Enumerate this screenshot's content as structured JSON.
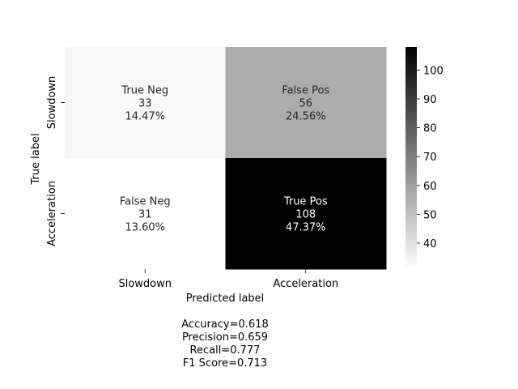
{
  "chart_data": {
    "type": "heatmap",
    "title": "",
    "xlabel": "Predicted label",
    "ylabel": "True label",
    "x_categories": [
      "Slowdown",
      "Acceleration"
    ],
    "y_categories": [
      "Slowdown",
      "Acceleration"
    ],
    "cells": [
      [
        {
          "name": "True Neg",
          "count": "33",
          "percent": "14.47%",
          "value": 33
        },
        {
          "name": "False Pos",
          "count": "56",
          "percent": "24.56%",
          "value": 56
        }
      ],
      [
        {
          "name": "False Neg",
          "count": "31",
          "percent": "13.60%",
          "value": 31
        },
        {
          "name": "True Pos",
          "count": "108",
          "percent": "47.37%",
          "value": 108
        }
      ]
    ],
    "colormap": "binary",
    "colorbar": {
      "min": 31,
      "max": 108,
      "ticks": [
        40,
        50,
        60,
        70,
        80,
        90,
        100
      ],
      "tick_labels": [
        "40",
        "50",
        "60",
        "70",
        "80",
        "90",
        "100"
      ]
    }
  },
  "stats": {
    "accuracy": "Accuracy=0.618",
    "precision": "Precision=0.659",
    "recall": "Recall=0.777",
    "f1": "F1 Score=0.713"
  }
}
